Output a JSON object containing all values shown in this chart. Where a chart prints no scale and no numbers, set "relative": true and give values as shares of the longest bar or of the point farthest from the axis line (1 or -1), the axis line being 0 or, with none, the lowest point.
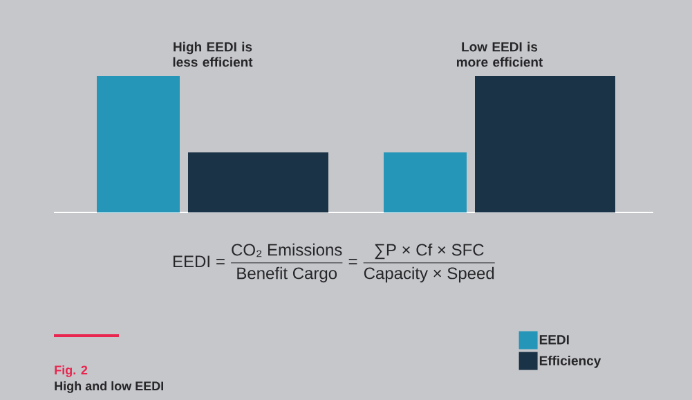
{
  "chart_data": {
    "type": "bar",
    "title": "High and low EEDI",
    "relative": true,
    "categories": [
      "High EEDI is less efficient",
      "Low EEDI is more efficient"
    ],
    "series": [
      {
        "name": "EEDI",
        "color": "#2596b8",
        "values": [
          1,
          0.44
        ]
      },
      {
        "name": "Efficiency",
        "color": "#1b3347",
        "values": [
          0.44,
          1
        ]
      }
    ],
    "legend": "bottom right",
    "annotations": [
      "\\text{EEDI}\\mathrel{\\text{=}}\\frac{\\text{CO₂ Emissions}}{\\text{Benefit Cargo}}\\mathrel{\\text{=}}\\frac{\\text{∑P × Cf × SFC}}{\\text{Capacity × Speed}}",
      "Fig. 2"
    ]
  }
}
